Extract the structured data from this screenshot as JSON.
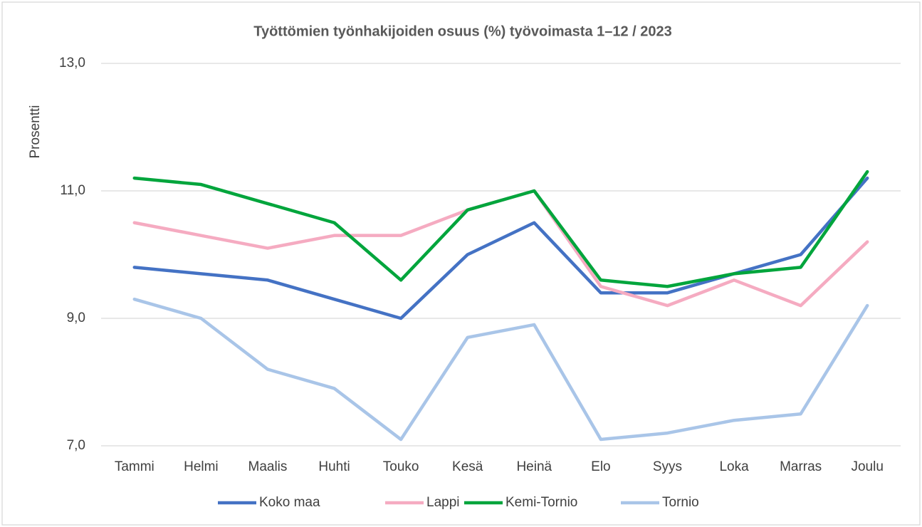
{
  "chart_data": {
    "type": "line",
    "title": "Työttömien työnhakijoiden osuus (%) työvoimasta 1–12 / 2023",
    "y_label": "Prosentti",
    "categories": [
      "Tammi",
      "Helmi",
      "Maalis",
      "Huhti",
      "Touko",
      "Kesä",
      "Heinä",
      "Elo",
      "Syys",
      "Loka",
      "Marras",
      "Joulu"
    ],
    "series": [
      {
        "name": "Koko maa",
        "color": "#4472c4",
        "values": [
          9.8,
          9.7,
          9.6,
          9.3,
          9.0,
          10.0,
          10.5,
          9.4,
          9.4,
          9.7,
          10.0,
          11.2
        ]
      },
      {
        "name": "Lappi",
        "color": "#f5abc1",
        "values": [
          10.5,
          10.3,
          10.1,
          10.3,
          10.3,
          10.7,
          11.0,
          9.5,
          9.2,
          9.6,
          9.2,
          10.2
        ]
      },
      {
        "name": "Kemi-Tornio",
        "color": "#00a53c",
        "values": [
          11.2,
          11.1,
          10.8,
          10.5,
          9.6,
          10.7,
          11.0,
          9.6,
          9.5,
          9.7,
          9.8,
          11.3
        ]
      },
      {
        "name": "Tornio",
        "color": "#a9c5e8",
        "values": [
          9.3,
          9.0,
          8.2,
          7.9,
          7.1,
          8.7,
          8.9,
          7.1,
          7.2,
          7.4,
          7.5,
          9.2
        ]
      }
    ],
    "ylim": [
      7,
      13
    ],
    "yticks": [
      {
        "value": 7,
        "label": "7,0"
      },
      {
        "value": 9,
        "label": "9,0"
      },
      {
        "value": 11,
        "label": "11,0"
      },
      {
        "value": 13,
        "label": "13,0"
      }
    ],
    "grid": true,
    "legend": "bottom"
  }
}
